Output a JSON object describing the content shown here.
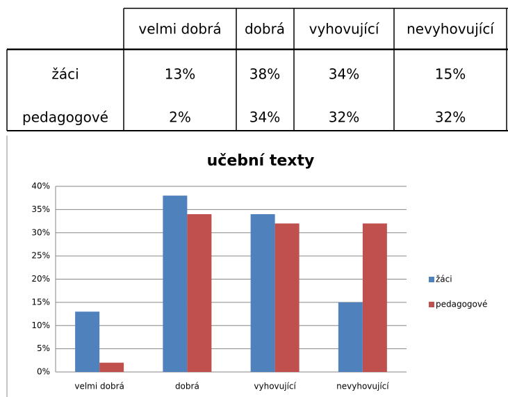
{
  "table": {
    "header": [
      "velmi dobrá",
      "dobrá",
      "vyhovující",
      "nevyhovující"
    ],
    "rows": [
      [
        "žáci",
        "13%",
        "38%",
        "34%",
        "15%"
      ],
      [
        "pedagogové",
        "2%",
        "34%",
        "32%",
        "32%"
      ]
    ]
  },
  "chart_data": {
    "type": "bar",
    "title": "učební texty",
    "categories": [
      "velmi dobrá",
      "dobrá",
      "vyhovující",
      "nevyhovující"
    ],
    "series": [
      {
        "name": "žáci",
        "color": "#4f81bd",
        "values": [
          13,
          38,
          34,
          15
        ]
      },
      {
        "name": "pedagogové",
        "color": "#c0504d",
        "values": [
          2,
          34,
          32,
          32
        ]
      }
    ],
    "ylim": [
      0,
      40
    ],
    "yticks": [
      {
        "value": 0,
        "label": "0%"
      },
      {
        "value": 5,
        "label": "5%"
      },
      {
        "value": 10,
        "label": "10%"
      },
      {
        "value": 15,
        "label": "15%"
      },
      {
        "value": 20,
        "label": "20%"
      },
      {
        "value": 25,
        "label": "25%"
      },
      {
        "value": 30,
        "label": "30%"
      },
      {
        "value": 35,
        "label": "35%"
      },
      {
        "value": 40,
        "label": "40%"
      }
    ],
    "grid": true,
    "legend": "right"
  }
}
